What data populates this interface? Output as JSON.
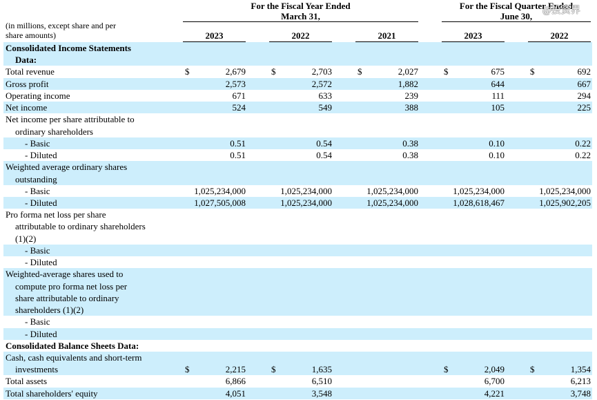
{
  "header": {
    "note": [
      "(in millions, except share and per",
      "share amounts)"
    ],
    "groups": [
      {
        "title": [
          "For the Fiscal Year Ended",
          "March 31,"
        ],
        "columns": [
          "2023",
          "2022",
          "2021"
        ]
      },
      {
        "title": [
          "For the Fiscal Quarter Ended",
          "June 30,"
        ],
        "columns": [
          "2023",
          "2022"
        ]
      }
    ]
  },
  "watermark": "@投资界",
  "sections": [
    {
      "title": [
        "Consolidated Income Statements",
        "Data:"
      ],
      "rows": [
        {
          "label": [
            "Total revenue"
          ],
          "cells": [
            [
              "$",
              "2,679"
            ],
            [
              "$",
              "2,703"
            ],
            [
              "$",
              "2,027"
            ],
            [
              "$",
              "675"
            ],
            [
              "$",
              "692"
            ]
          ]
        },
        {
          "label": [
            "Gross profit"
          ],
          "cells": [
            [
              null,
              "2,573"
            ],
            [
              null,
              "2,572"
            ],
            [
              null,
              "1,882"
            ],
            [
              null,
              "644"
            ],
            [
              null,
              "667"
            ]
          ]
        },
        {
          "label": [
            "Operating income"
          ],
          "cells": [
            [
              null,
              "671"
            ],
            [
              null,
              "633"
            ],
            [
              null,
              "239"
            ],
            [
              null,
              "111"
            ],
            [
              null,
              "294"
            ]
          ]
        },
        {
          "label": [
            "Net income"
          ],
          "cells": [
            [
              null,
              "524"
            ],
            [
              null,
              "549"
            ],
            [
              null,
              "388"
            ],
            [
              null,
              "105"
            ],
            [
              null,
              "225"
            ]
          ]
        },
        {
          "label": [
            "Net income per share attributable to",
            "ordinary shareholders"
          ],
          "details": [
            {
              "label": "- Basic",
              "cells": [
                [
                  null,
                  "0.51"
                ],
                [
                  null,
                  "0.54"
                ],
                [
                  null,
                  "0.38"
                ],
                [
                  null,
                  "0.10"
                ],
                [
                  null,
                  "0.22"
                ]
              ]
            },
            {
              "label": "- Diluted",
              "cells": [
                [
                  null,
                  "0.51"
                ],
                [
                  null,
                  "0.54"
                ],
                [
                  null,
                  "0.38"
                ],
                [
                  null,
                  "0.10"
                ],
                [
                  null,
                  "0.22"
                ]
              ]
            }
          ]
        },
        {
          "label": [
            "Weighted average ordinary shares",
            "outstanding"
          ],
          "details": [
            {
              "label": "- Basic",
              "cells": [
                [
                  null,
                  "1,025,234,000"
                ],
                [
                  null,
                  "1,025,234,000"
                ],
                [
                  null,
                  "1,025,234,000"
                ],
                [
                  null,
                  "1,025,234,000"
                ],
                [
                  null,
                  "1,025,234,000"
                ]
              ]
            },
            {
              "label": "- Diluted",
              "cells": [
                [
                  null,
                  "1,027,505,008"
                ],
                [
                  null,
                  "1,025,234,000"
                ],
                [
                  null,
                  "1,025,234,000"
                ],
                [
                  null,
                  "1,028,618,467"
                ],
                [
                  null,
                  "1,025,902,205"
                ]
              ]
            }
          ]
        },
        {
          "label": [
            "Pro forma net loss per share",
            "attributable to ordinary shareholders",
            "(1)(2)"
          ],
          "details": [
            {
              "label": "- Basic"
            },
            {
              "label": "- Diluted"
            }
          ]
        },
        {
          "label": [
            "Weighted-average shares used to",
            "compute pro forma net loss per",
            "share attributable to ordinary",
            "shareholders (1)(2)"
          ],
          "details": [
            {
              "label": "- Basic"
            },
            {
              "label": "- Diluted"
            }
          ]
        }
      ]
    },
    {
      "title": [
        "Consolidated Balance Sheets Data:"
      ],
      "rows": [
        {
          "label": [
            "Cash, cash equivalents and short-term",
            "investments"
          ],
          "cells": [
            [
              "$",
              "2,215"
            ],
            [
              "$",
              "1,635"
            ],
            null,
            [
              "$",
              "2,049"
            ],
            [
              "$",
              "1,354"
            ]
          ]
        },
        {
          "label": [
            "Total assets"
          ],
          "cells": [
            [
              null,
              "6,866"
            ],
            [
              null,
              "6,510"
            ],
            null,
            [
              null,
              "6,700"
            ],
            [
              null,
              "6,213"
            ]
          ]
        },
        {
          "label": [
            "Total shareholders' equity"
          ],
          "cells": [
            [
              null,
              "4,051"
            ],
            [
              null,
              "3,548"
            ],
            null,
            [
              null,
              "4,221"
            ],
            [
              null,
              "3,748"
            ]
          ]
        }
      ]
    }
  ]
}
